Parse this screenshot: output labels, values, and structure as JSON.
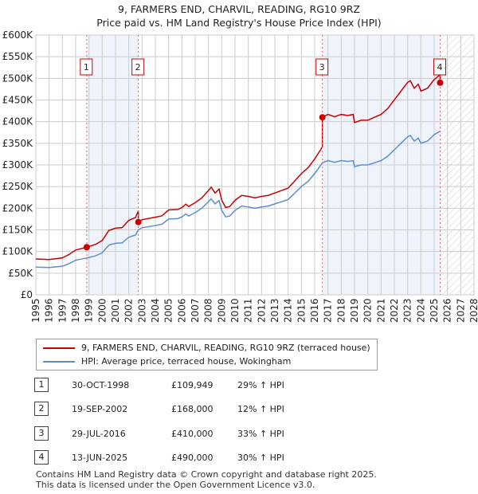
{
  "chart_data": {
    "type": "line",
    "title": "9, FARMERS END, CHARVIL, READING, RG10 9RZ",
    "subtitle": "Price paid vs. HM Land Registry's House Price Index (HPI)",
    "xlim": [
      1995,
      2028
    ],
    "ylim": [
      0,
      600000
    ],
    "yticks": [
      {
        "v": 0,
        "label": "£0"
      },
      {
        "v": 50000,
        "label": "£50K"
      },
      {
        "v": 100000,
        "label": "£100K"
      },
      {
        "v": 150000,
        "label": "£150K"
      },
      {
        "v": 200000,
        "label": "£200K"
      },
      {
        "v": 250000,
        "label": "£250K"
      },
      {
        "v": 300000,
        "label": "£300K"
      },
      {
        "v": 350000,
        "label": "£350K"
      },
      {
        "v": 400000,
        "label": "£400K"
      },
      {
        "v": 450000,
        "label": "£450K"
      },
      {
        "v": 500000,
        "label": "£500K"
      },
      {
        "v": 550000,
        "label": "£550K"
      },
      {
        "v": 600000,
        "label": "£600K"
      }
    ],
    "xticks": [
      "1995",
      "1996",
      "1997",
      "1998",
      "1999",
      "2000",
      "2001",
      "2002",
      "2003",
      "2004",
      "2005",
      "2006",
      "2007",
      "2008",
      "2009",
      "2010",
      "2011",
      "2012",
      "2013",
      "2014",
      "2015",
      "2016",
      "2017",
      "2018",
      "2019",
      "2020",
      "2021",
      "2022",
      "2023",
      "2024",
      "2025",
      "2026",
      "2027",
      "2028"
    ],
    "forecast_start": 2025.45,
    "colors": {
      "price": "#cc0000",
      "hpi": "#5b8fd0",
      "shade": "#eef3fc"
    },
    "hpi_series": [
      [
        1995,
        64
      ],
      [
        1996,
        63
      ],
      [
        1997,
        66
      ],
      [
        1997.5,
        72
      ],
      [
        1998,
        80
      ],
      [
        1998.83,
        85
      ],
      [
        1999.5,
        90
      ],
      [
        2000,
        97
      ],
      [
        2000.5,
        115
      ],
      [
        2001,
        119
      ],
      [
        2001.5,
        120
      ],
      [
        2002,
        133
      ],
      [
        2002.5,
        138
      ],
      [
        2002.72,
        150
      ],
      [
        2003,
        155
      ],
      [
        2004,
        160
      ],
      [
        2004.5,
        163
      ],
      [
        2005,
        175
      ],
      [
        2005.7,
        176
      ],
      [
        2006,
        180
      ],
      [
        2006.3,
        187
      ],
      [
        2006.5,
        182
      ],
      [
        2007,
        190
      ],
      [
        2007.5,
        200
      ],
      [
        2008,
        215
      ],
      [
        2008.2,
        222
      ],
      [
        2008.5,
        210
      ],
      [
        2008.8,
        218
      ],
      [
        2009,
        195
      ],
      [
        2009.3,
        180
      ],
      [
        2009.6,
        182
      ],
      [
        2010,
        195
      ],
      [
        2010.5,
        205
      ],
      [
        2011,
        203
      ],
      [
        2011.5,
        200
      ],
      [
        2012,
        203
      ],
      [
        2012.5,
        205
      ],
      [
        2013,
        210
      ],
      [
        2014,
        220
      ],
      [
        2014.5,
        235
      ],
      [
        2015,
        250
      ],
      [
        2015.5,
        262
      ],
      [
        2016,
        280
      ],
      [
        2016.58,
        305
      ],
      [
        2017,
        310
      ],
      [
        2017.5,
        306
      ],
      [
        2018,
        310
      ],
      [
        2018.5,
        308
      ],
      [
        2018.9,
        310
      ],
      [
        2019,
        296
      ],
      [
        2019.5,
        300
      ],
      [
        2020,
        300
      ],
      [
        2020.5,
        305
      ],
      [
        2021,
        310
      ],
      [
        2021.5,
        320
      ],
      [
        2022,
        335
      ],
      [
        2022.5,
        350
      ],
      [
        2023,
        365
      ],
      [
        2023.2,
        368
      ],
      [
        2023.5,
        355
      ],
      [
        2023.8,
        362
      ],
      [
        2024,
        350
      ],
      [
        2024.5,
        355
      ],
      [
        2025,
        370
      ],
      [
        2025.45,
        378
      ]
    ],
    "sales": [
      {
        "n": "1",
        "x": 1998.83,
        "price": 109949
      },
      {
        "n": "2",
        "x": 2002.72,
        "price": 168000
      },
      {
        "n": "3",
        "x": 2016.58,
        "price": 410000
      },
      {
        "n": "4",
        "x": 2025.45,
        "price": 490000
      }
    ]
  },
  "legend": {
    "price": "9, FARMERS END, CHARVIL, READING, RG10 9RZ (terraced house)",
    "hpi": "HPI: Average price, terraced house, Wokingham"
  },
  "table": [
    {
      "n": "1",
      "date": "30-OCT-1998",
      "price": "£109,949",
      "hpi": "29% ↑ HPI"
    },
    {
      "n": "2",
      "date": "19-SEP-2002",
      "price": "£168,000",
      "hpi": "12% ↑ HPI"
    },
    {
      "n": "3",
      "date": "29-JUL-2016",
      "price": "£410,000",
      "hpi": "33% ↑ HPI"
    },
    {
      "n": "4",
      "date": "13-JUN-2025",
      "price": "£490,000",
      "hpi": "30% ↑ HPI"
    }
  ],
  "footer": [
    "Contains HM Land Registry data © Crown copyright and database right 2025.",
    "This data is licensed under the Open Government Licence v3.0."
  ]
}
